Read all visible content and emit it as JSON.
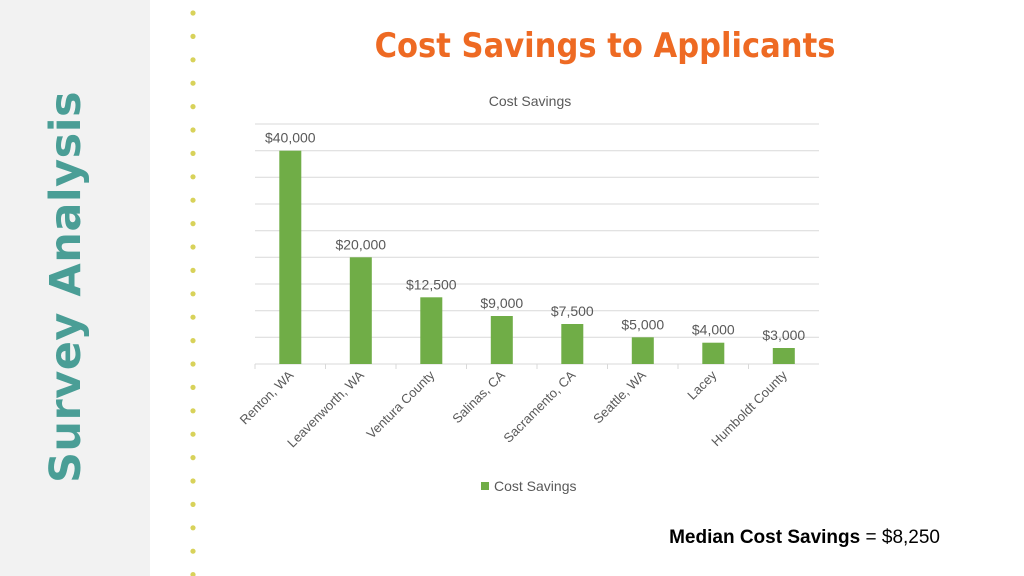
{
  "side_title": "Survey Analysis",
  "slide_title": "Cost Savings to Applicants",
  "median": {
    "label": "Median Cost Savings",
    "equals": " = ",
    "value": "$8,250"
  },
  "colors": {
    "side_title": "#4a9e96",
    "slide_title": "#ee6a23",
    "dots": "#d8d25a",
    "bar": "#70ad47",
    "grid": "#d9d9d9",
    "label": "#595959"
  },
  "chart_data": {
    "type": "bar",
    "title": "Cost Savings",
    "categories": [
      "Renton, WA",
      "Leavenworth, WA",
      "Ventura County",
      "Salinas, CA",
      "Sacramento, CA",
      "Seattle, WA",
      "Lacey",
      "Humboldt County"
    ],
    "series": [
      {
        "name": "Cost Savings",
        "values": [
          40000,
          20000,
          12500,
          9000,
          7500,
          5000,
          4000,
          3000
        ],
        "data_labels": [
          "$40,000",
          "$20,000",
          "$12,500",
          "$9,000",
          "$7,500",
          "$5,000",
          "$4,000",
          "$3,000"
        ]
      }
    ],
    "ylim": [
      0,
      45000
    ],
    "grid": true,
    "legend": "bottom",
    "xlabel": "",
    "ylabel": ""
  }
}
